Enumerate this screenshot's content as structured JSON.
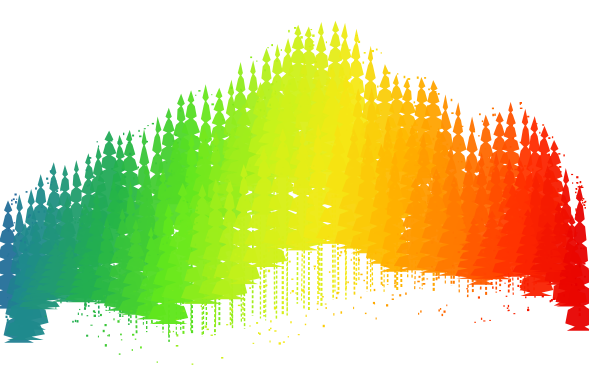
{
  "image": {
    "subject": "lidar-forest-point-cloud",
    "background": "#ffffff",
    "colormap": {
      "name": "height-rainbow",
      "stops": [
        "#2b3fb0",
        "#1f8a8c",
        "#23b24a",
        "#5fe61d",
        "#c8f21a",
        "#f5e915",
        "#ffb400",
        "#ff7a00",
        "#ff2a00",
        "#e60000"
      ]
    }
  }
}
